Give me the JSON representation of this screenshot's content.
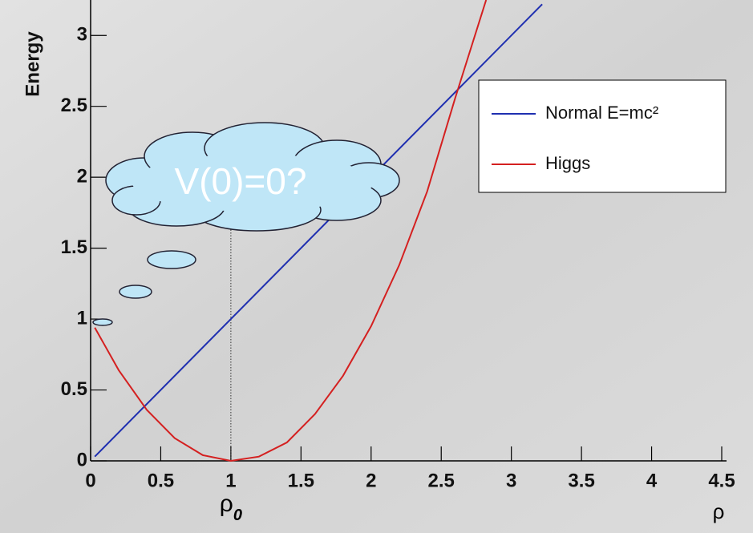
{
  "chart_data": {
    "type": "line",
    "y_label": "Energy",
    "x_label": "ρ",
    "xlim": [
      0,
      4.5
    ],
    "ylim": [
      0,
      3.25
    ],
    "xticks": [
      0,
      0.5,
      1,
      1.5,
      2,
      2.5,
      3,
      3.5,
      4,
      4.5
    ],
    "yticks": [
      0,
      0.5,
      1,
      1.5,
      2,
      2.5,
      3
    ],
    "series": [
      {
        "name": "Normal E=mc²",
        "color": "#1f2fb0",
        "x": [
          0.03,
          3.22
        ],
        "values": [
          0.03,
          3.22
        ]
      },
      {
        "name": "Higgs",
        "color": "#d42020",
        "x": [
          0.03,
          0.2,
          0.4,
          0.6,
          0.8,
          1.0,
          1.2,
          1.4,
          1.6,
          1.8,
          2.0,
          2.2,
          2.4,
          2.6,
          2.82
        ],
        "values": [
          0.94,
          0.64,
          0.36,
          0.16,
          0.04,
          0,
          0.03,
          0.13,
          0.33,
          0.6,
          0.95,
          1.38,
          1.9,
          2.56,
          3.25
        ]
      }
    ],
    "legend": "top-right",
    "reference_line": {
      "x": 1,
      "y_end": 2.2,
      "label": "ρ",
      "subscript": "0"
    },
    "annotation": "V(0)=0?"
  }
}
